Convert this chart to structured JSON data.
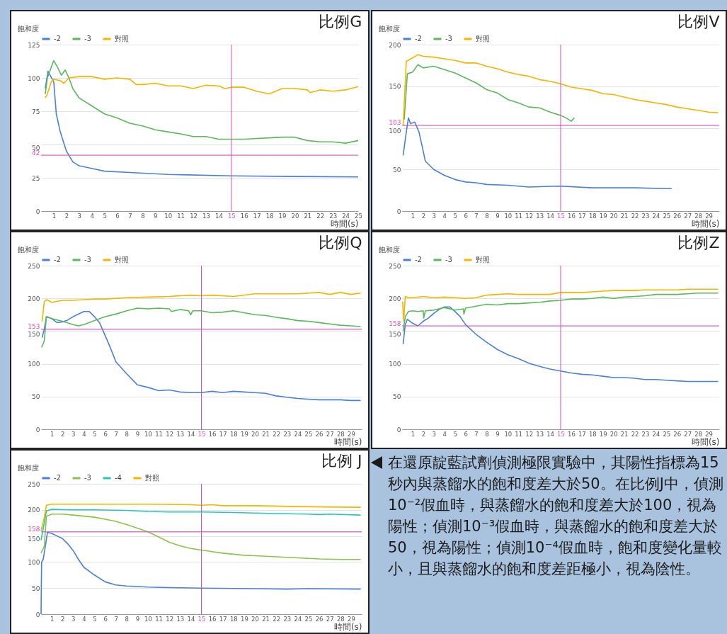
{
  "chart_data": [
    {
      "type": "line",
      "title": "比例G",
      "xlabel": "時間(s)",
      "ylabel": "飽和度",
      "xlim": [
        0,
        25
      ],
      "ylim": [
        0,
        125
      ],
      "xticks": [
        1,
        2,
        3,
        4,
        5,
        6,
        7,
        8,
        9,
        10,
        11,
        12,
        13,
        14,
        15,
        16,
        17,
        18,
        19,
        20,
        21,
        22,
        23,
        24,
        25
      ],
      "yticks": [
        0,
        25,
        50,
        75,
        100,
        125
      ],
      "grid": "y",
      "legend": "top",
      "ref_lines": [
        {
          "axis": "x",
          "value": 15,
          "color": "#d84fc4"
        },
        {
          "axis": "y",
          "value": 42,
          "label": "42",
          "color": "#d84fc4"
        }
      ],
      "series": [
        {
          "name": "-2",
          "color": "#4a7fdc",
          "x": [
            0.33,
            0.55,
            1,
            1.2,
            1.5,
            2,
            2.5,
            3,
            4,
            5,
            7,
            10,
            15,
            20,
            25
          ],
          "values": [
            92,
            105,
            97,
            73,
            60,
            45,
            37,
            34,
            32,
            30,
            29,
            27.5,
            26.5,
            26,
            25.7
          ]
        },
        {
          "name": "-3",
          "color": "#5cb85c",
          "x": [
            0.33,
            0.5,
            0.8,
            1,
            1.3,
            1.6,
            1.9,
            2.2,
            2.5,
            3,
            3.5,
            4,
            5,
            6,
            7,
            8,
            9,
            10,
            11,
            12,
            13,
            14,
            15,
            16,
            17,
            18,
            19,
            20,
            21,
            22,
            23,
            24,
            25
          ],
          "values": [
            88,
            100,
            108,
            113,
            108,
            102,
            106,
            100,
            92,
            85,
            82,
            79,
            73,
            70,
            66,
            64,
            61,
            59.5,
            58,
            56,
            56,
            54,
            54,
            54,
            54.5,
            55,
            55.5,
            55.5,
            53,
            52,
            52,
            51,
            53
          ]
        },
        {
          "name": "對照",
          "color": "#f4b400",
          "x": [
            0.33,
            0.5,
            0.8,
            1,
            1.5,
            1.8,
            2.2,
            3,
            4,
            5,
            6,
            7,
            7.5,
            8,
            9,
            10,
            11,
            12,
            13,
            14,
            14.5,
            15,
            16,
            17,
            18,
            18.5,
            19,
            20,
            21,
            21.2,
            22,
            23,
            24,
            25
          ],
          "values": [
            85,
            88,
            97,
            99,
            98,
            96,
            100,
            101,
            101,
            99,
            100,
            99,
            95,
            95,
            96,
            94,
            94,
            92,
            94.5,
            94,
            92,
            93,
            93,
            90,
            88,
            90,
            92,
            92,
            91,
            89,
            91,
            90,
            91,
            93.5
          ]
        }
      ]
    },
    {
      "type": "line",
      "title": "比例V",
      "xlabel": "時間(s)",
      "ylabel": "飽和度",
      "xlim": [
        0,
        30
      ],
      "ylim": [
        0,
        200
      ],
      "xticks": [
        1,
        2,
        3,
        4,
        5,
        6,
        7,
        8,
        9,
        10,
        11,
        12,
        13,
        14,
        15,
        16,
        17,
        18,
        19,
        20,
        21,
        22,
        23,
        24,
        25,
        26,
        27,
        28,
        29
      ],
      "yticks": [
        0,
        50,
        100,
        150,
        200
      ],
      "grid": "y",
      "legend": "top",
      "ref_lines": [
        {
          "axis": "x",
          "value": 15,
          "color": "#d84fc4"
        },
        {
          "axis": "y",
          "value": 103,
          "label": "103",
          "color": "#d84fc4"
        }
      ],
      "series": [
        {
          "name": "-2",
          "color": "#4a7fdc",
          "x": [
            0.1,
            0.4,
            0.6,
            0.8,
            1.2,
            1.6,
            2,
            2.2,
            3,
            4,
            5,
            6,
            7,
            8,
            10,
            12,
            15,
            18,
            20,
            22,
            25,
            25.5
          ],
          "values": [
            67,
            95,
            112,
            105,
            107,
            95,
            72,
            60,
            50,
            43,
            38,
            35,
            34,
            32,
            31,
            29,
            30,
            28,
            28,
            28,
            27,
            27
          ]
        },
        {
          "name": "-3",
          "color": "#5cb85c",
          "x": [
            0.2,
            0.5,
            1,
            1.5,
            2,
            3,
            4,
            5,
            6,
            7,
            8,
            9,
            10,
            11,
            12,
            13,
            14,
            15,
            15.5,
            16,
            16.3
          ],
          "values": [
            110,
            165,
            167,
            176,
            172,
            174,
            170,
            166,
            160,
            154,
            146,
            142,
            134,
            130,
            125,
            124,
            119,
            115,
            112,
            108,
            112
          ]
        },
        {
          "name": "對照",
          "color": "#f4b400",
          "x": [
            0.1,
            0.4,
            1,
            1.5,
            2,
            3,
            4,
            5,
            6,
            7,
            8,
            9,
            10,
            11,
            12,
            13,
            14,
            15,
            16,
            17,
            18,
            19,
            20,
            21,
            22,
            23,
            24,
            25,
            26,
            27,
            28,
            29,
            29.9
          ],
          "values": [
            103,
            180,
            184,
            188,
            186,
            185,
            183,
            181,
            178,
            178,
            174,
            171,
            167,
            164,
            162,
            158,
            156,
            153,
            149,
            147,
            145,
            141,
            140,
            137,
            134,
            132,
            130,
            128,
            125,
            123,
            121,
            119,
            118
          ]
        }
      ]
    },
    {
      "type": "line",
      "title": "比例Q",
      "xlabel": "時間(s)",
      "ylabel": "飽和度",
      "xlim": [
        0,
        30
      ],
      "ylim": [
        0,
        250
      ],
      "xticks": [
        1,
        2,
        3,
        4,
        5,
        6,
        7,
        8,
        9,
        10,
        11,
        12,
        13,
        14,
        15,
        16,
        17,
        18,
        19,
        20,
        21,
        22,
        23,
        24,
        25,
        26,
        27,
        28,
        29
      ],
      "yticks": [
        0,
        50,
        100,
        150,
        200,
        250
      ],
      "grid": "y",
      "legend": "top",
      "ref_lines": [
        {
          "axis": "x",
          "value": 15,
          "color": "#d84fc4"
        },
        {
          "axis": "y",
          "value": 153,
          "label": "153",
          "color": "#d84fc4"
        }
      ],
      "series": [
        {
          "name": "-2",
          "color": "#4a7fdc",
          "x": [
            0.1,
            0.3,
            0.5,
            1,
            1.5,
            2,
            2.5,
            3,
            4,
            4.5,
            5,
            5.5,
            6,
            6.5,
            7,
            8,
            9,
            10,
            11,
            12,
            13,
            14,
            15,
            16,
            17,
            18,
            19,
            20,
            21,
            22,
            23,
            24,
            25,
            26,
            27,
            28,
            29,
            29.9
          ],
          "values": [
            140,
            153,
            172,
            169,
            163,
            164,
            167,
            172,
            180,
            180,
            172,
            162,
            143,
            124,
            103,
            85,
            68,
            64,
            59,
            60,
            57,
            56,
            56,
            58,
            56,
            58,
            57,
            56,
            55,
            51,
            49,
            47,
            46,
            45,
            45,
            45,
            44,
            44
          ]
        },
        {
          "name": "-3",
          "color": "#5cb85c",
          "x": [
            0.05,
            0.3,
            0.5,
            1,
            2,
            3,
            3.5,
            4,
            5,
            6,
            7,
            8,
            9,
            10,
            11,
            12,
            12.2,
            13,
            13.8,
            14,
            14.2,
            15,
            16,
            17,
            18,
            19,
            20,
            21,
            22,
            23,
            24,
            25,
            26,
            27,
            28,
            29,
            29.9
          ],
          "values": [
            125,
            135,
            172,
            169,
            165,
            160,
            158,
            160,
            166,
            172,
            176,
            181,
            185,
            184,
            185,
            184,
            180,
            183,
            181,
            175,
            181,
            181,
            178,
            179,
            181,
            178,
            175,
            174,
            171,
            169,
            166,
            165,
            163,
            161,
            159,
            158,
            157
          ]
        },
        {
          "name": "對照",
          "color": "#f4b400",
          "x": [
            0.1,
            0.3,
            0.5,
            1,
            2,
            3,
            4,
            5,
            6,
            8,
            10,
            12,
            14,
            15,
            16,
            18,
            20,
            22,
            24,
            26,
            27,
            28,
            29,
            29.9
          ],
          "values": [
            165,
            195,
            198,
            194,
            197,
            197,
            198,
            199,
            199,
            201,
            202,
            203,
            205,
            204,
            205,
            203,
            207,
            207,
            207,
            209,
            206,
            209,
            206,
            208
          ]
        }
      ]
    },
    {
      "type": "line",
      "title": "比例Z",
      "xlabel": "時間(s)",
      "ylabel": "飽和度",
      "xlim": [
        0,
        30
      ],
      "ylim": [
        0,
        250
      ],
      "xticks": [
        1,
        2,
        3,
        4,
        5,
        6,
        7,
        8,
        9,
        10,
        11,
        12,
        13,
        14,
        15,
        16,
        17,
        18,
        19,
        20,
        21,
        22,
        23,
        24,
        25,
        26,
        27,
        28,
        29
      ],
      "yticks": [
        0,
        50,
        100,
        150,
        200,
        250
      ],
      "grid": "y",
      "legend": "top",
      "ref_lines": [
        {
          "axis": "x",
          "value": 15,
          "color": "#d84fc4"
        },
        {
          "axis": "y",
          "value": 158,
          "label": "158",
          "color": "#d84fc4"
        }
      ],
      "series": [
        {
          "name": "-2",
          "color": "#4a7fdc",
          "x": [
            0.1,
            0.3,
            0.5,
            1,
            1.5,
            2,
            2.5,
            3,
            3.5,
            4,
            4.5,
            5,
            5.5,
            6,
            7,
            8,
            9,
            10,
            11,
            12,
            13,
            14,
            15,
            16,
            17,
            18,
            19,
            20,
            21,
            22,
            23,
            24,
            25,
            26,
            27,
            28,
            29.9
          ],
          "values": [
            130,
            160,
            168,
            162,
            158,
            165,
            170,
            177,
            183,
            187,
            187,
            180,
            172,
            160,
            145,
            133,
            122,
            114,
            108,
            101,
            96,
            92,
            89,
            86,
            84,
            83,
            81,
            79,
            79,
            78,
            76,
            76,
            75,
            74,
            73,
            73,
            73
          ]
        },
        {
          "name": "-3",
          "color": "#5cb85c",
          "x": [
            0.1,
            0.3,
            0.6,
            1,
            1.5,
            2,
            2.05,
            2.2,
            3,
            4,
            5,
            5.8,
            5.85,
            6,
            7,
            8,
            9,
            10,
            11,
            12,
            13,
            14,
            15,
            16,
            17,
            18,
            19,
            20,
            21,
            22,
            23,
            24,
            25,
            26,
            27,
            28,
            29.9
          ],
          "values": [
            150,
            172,
            180,
            181,
            180,
            181,
            170,
            181,
            182,
            186,
            182,
            184,
            176,
            185,
            188,
            191,
            190,
            192,
            192,
            193,
            194,
            196,
            197,
            199,
            199,
            200,
            202,
            200,
            202,
            203,
            204,
            206,
            206,
            206,
            207,
            208,
            208
          ]
        },
        {
          "name": "對照",
          "color": "#f4b400",
          "x": [
            0.05,
            0.15,
            0.3,
            0.6,
            1,
            2,
            3,
            4,
            5,
            6,
            7,
            8,
            9,
            10,
            11,
            12,
            13,
            14,
            15,
            16,
            17,
            18,
            19,
            20,
            21,
            22,
            23,
            24,
            25,
            26,
            27,
            28,
            29.9
          ],
          "values": [
            195,
            165,
            203,
            201,
            201,
            203,
            201,
            202,
            201,
            200,
            201,
            205,
            206,
            207,
            206,
            206,
            206,
            206,
            209,
            209,
            209,
            210,
            211,
            212,
            212,
            212,
            213,
            213,
            213,
            213,
            214,
            214,
            214
          ]
        }
      ]
    },
    {
      "type": "line",
      "title": "比例 J",
      "xlabel": "時間(s)",
      "ylabel": "飽和度",
      "xlim": [
        0,
        30
      ],
      "ylim": [
        0,
        250
      ],
      "xticks": [
        1,
        2,
        3,
        4,
        5,
        6,
        7,
        8,
        9,
        10,
        11,
        12,
        13,
        14,
        15,
        16,
        17,
        18,
        19,
        20,
        21,
        22,
        23,
        24,
        25,
        26,
        27,
        28,
        29
      ],
      "yticks": [
        0,
        50,
        100,
        150,
        200,
        250
      ],
      "grid": "y",
      "legend": "top",
      "ref_lines": [
        {
          "axis": "x",
          "value": 15,
          "color": "#d84fc4"
        },
        {
          "axis": "y",
          "value": 158,
          "label": "158",
          "color": "#d84fc4"
        }
      ],
      "series": [
        {
          "name": "-2",
          "color": "#4a7fdc",
          "x": [
            0,
            0.05,
            0.2,
            0.4,
            0.6,
            1,
            1.5,
            2,
            2.5,
            3,
            3.5,
            4,
            5,
            6,
            7,
            8,
            9,
            10,
            12,
            15,
            20,
            23,
            25,
            29.9
          ],
          "values": [
            0,
            100,
            105,
            130,
            157,
            155,
            150,
            145,
            135,
            122,
            105,
            90,
            75,
            62,
            56,
            54,
            53,
            52,
            51,
            50,
            49,
            48,
            49,
            48
          ]
        },
        {
          "name": "-3",
          "color": "#8bc34a",
          "x": [
            0,
            0.3,
            0.5,
            1,
            2,
            3,
            4,
            5,
            6,
            7,
            8,
            9,
            10,
            11,
            12,
            13,
            14,
            15,
            16,
            17,
            18,
            19,
            20,
            22,
            24,
            26,
            28,
            29.9
          ],
          "values": [
            117,
            130,
            188,
            192,
            192,
            190,
            188,
            186,
            182,
            178,
            172,
            165,
            158,
            148,
            138,
            131,
            126,
            123,
            120,
            117,
            115,
            113,
            112,
            110,
            108,
            106,
            105,
            105
          ]
        },
        {
          "name": "-4",
          "color": "#26c6b9",
          "x": [
            0,
            0.3,
            0.5,
            1,
            3,
            5,
            8,
            10,
            12,
            15,
            18,
            20,
            22,
            25,
            26,
            27,
            29.9
          ],
          "values": [
            142,
            175,
            198,
            201,
            200,
            200,
            199,
            197,
            196,
            196,
            195,
            194,
            193,
            192,
            191,
            192,
            190
          ]
        },
        {
          "name": "對照",
          "color": "#f4b400",
          "x": [
            0,
            0.3,
            0.5,
            1,
            5,
            10,
            14,
            15,
            16,
            17,
            20,
            25,
            29.9
          ],
          "values": [
            160,
            185,
            209,
            211,
            211,
            211,
            210,
            209,
            210,
            208,
            208,
            206,
            205
          ]
        }
      ]
    },
    {
      "type": "other",
      "annotations": [
        "在還原靛藍試劑偵測極限實驗中，其陽性指標為15秒內與蒸餾水的飽和度差大於50。在比例J中，偵測10⁻²假血時，與蒸餾水的飽和度差大於100，視為陽性；偵測10⁻³假血時，與蒸餾水的飽和度差大於50，視為陽性；偵測10⁻⁴假血時，飽和度變化量較小，且與蒸餾水的飽和度差距極小，視為陰性。"
      ]
    }
  ]
}
